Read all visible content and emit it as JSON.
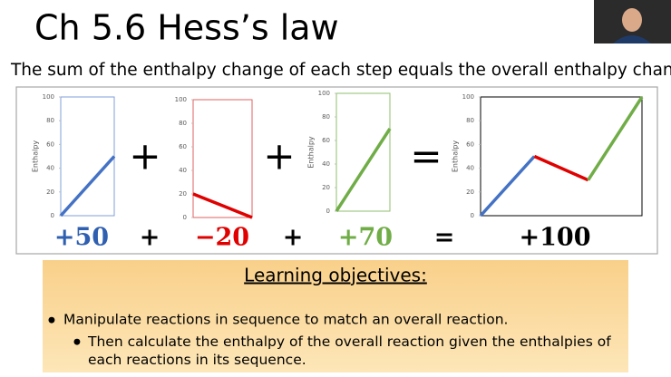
{
  "title": "Ch 5.6 Hess’s law",
  "subtitle": "The sum of the enthalpy change of each step equals the overall enthalpy change.",
  "chart_data": [
    {
      "type": "line",
      "ylabel": "Enthalpy",
      "frame_color": "#7f9fd9",
      "xlim": [
        0,
        1
      ],
      "ylim": [
        0,
        100
      ],
      "yticks": [
        0,
        20,
        40,
        60,
        80,
        100
      ],
      "series": [
        {
          "color": "#4472c4",
          "x": [
            0,
            1
          ],
          "values": [
            0,
            50
          ]
        }
      ]
    },
    {
      "type": "line",
      "frame_color": "#e06060",
      "xlim": [
        0,
        1
      ],
      "ylim": [
        0,
        100
      ],
      "yticks": [
        0,
        20,
        40,
        60,
        80,
        100
      ],
      "series": [
        {
          "color": "#e00000",
          "x": [
            0,
            1
          ],
          "values": [
            20,
            0
          ]
        }
      ]
    },
    {
      "type": "line",
      "ylabel": "Enthalpy",
      "frame_color": "#8fbf6f",
      "xlim": [
        0,
        1
      ],
      "ylim": [
        0,
        100
      ],
      "yticks": [
        0,
        20,
        40,
        60,
        80,
        100
      ],
      "series": [
        {
          "color": "#70ad47",
          "x": [
            0,
            1
          ],
          "values": [
            0,
            70
          ]
        }
      ]
    },
    {
      "type": "line",
      "ylabel": "Enthalpy",
      "frame_color": "#000000",
      "xlim": [
        0,
        3
      ],
      "ylim": [
        0,
        100
      ],
      "yticks": [
        0,
        20,
        40,
        60,
        80,
        100
      ],
      "series": [
        {
          "color": "#4472c4",
          "x": [
            0,
            1
          ],
          "values": [
            0,
            50
          ]
        },
        {
          "color": "#e00000",
          "x": [
            1,
            2
          ],
          "values": [
            50,
            30
          ]
        },
        {
          "color": "#70ad47",
          "x": [
            2,
            3
          ],
          "values": [
            30,
            100
          ]
        }
      ]
    }
  ],
  "operators": [
    "+",
    "+",
    "="
  ],
  "equation": [
    {
      "text": "+50",
      "color": "#2e5fb0"
    },
    {
      "text": "+",
      "color": "#000000"
    },
    {
      "text": "−20",
      "color": "#e00000"
    },
    {
      "text": "+",
      "color": "#000000"
    },
    {
      "text": "+70",
      "color": "#70ad47"
    },
    {
      "text": "=",
      "color": "#000000"
    },
    {
      "text": "+100",
      "color": "#000000"
    }
  ],
  "objectives": {
    "heading": "Learning objectives:",
    "items": [
      "Manipulate reactions in sequence to match an overall reaction.",
      "Then calculate the enthalpy of the overall reaction given the enthalpies of each reactions in its sequence."
    ]
  }
}
